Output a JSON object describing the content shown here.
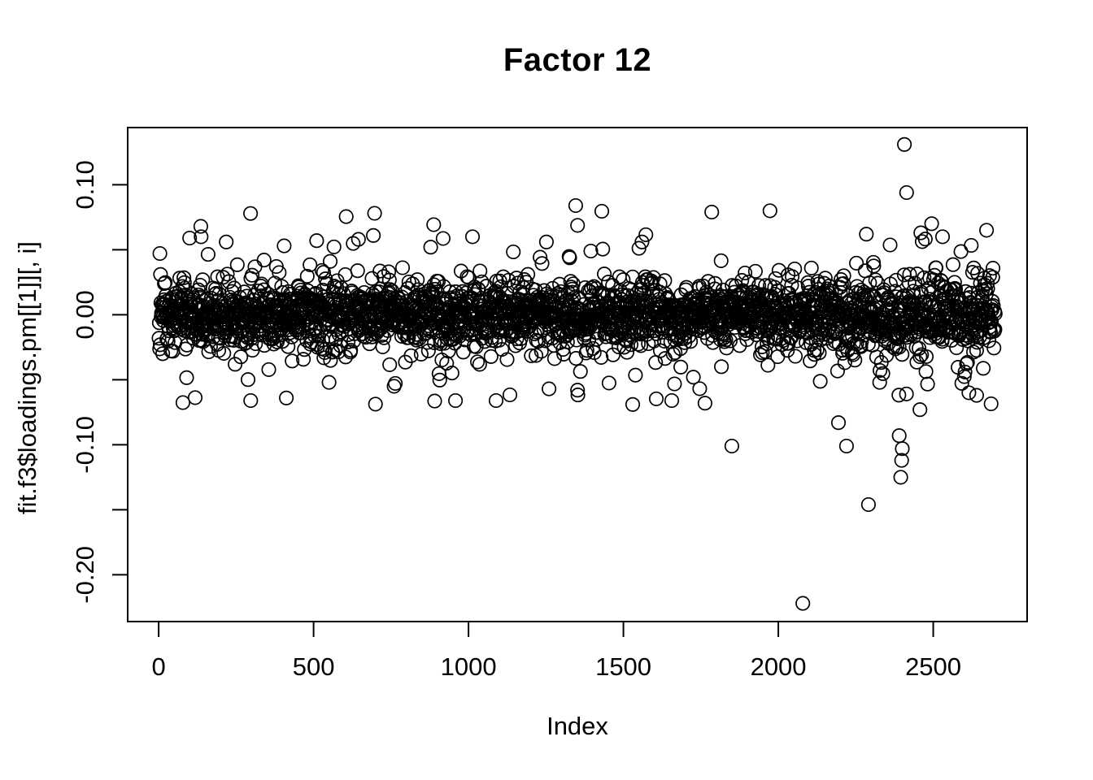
{
  "figure": {
    "background_color": "#ffffff",
    "foreground_color": "#000000"
  },
  "chart_data": {
    "type": "scatter",
    "title": "Factor 12",
    "xlabel": "Index",
    "ylabel": "fit.f3$loadings.pm[[1]][, i]",
    "marker": "open-circle",
    "marker_radius_px": 8.2,
    "marker_stroke_px": 1.7,
    "point_color": "#000000",
    "n_points": 2700,
    "x_tick_values": [
      0,
      500,
      1000,
      1500,
      2000,
      2500
    ],
    "x_tick_labels": [
      "0",
      "500",
      "1000",
      "1500",
      "2000",
      "2500"
    ],
    "y_tick_values": [
      0.1,
      0.05,
      0.0,
      -0.05,
      -0.1,
      -0.15,
      -0.2
    ],
    "y_tick_labels": [
      "0.10",
      "",
      "0.00",
      "",
      "-0.10",
      "",
      "-0.20"
    ],
    "xlim": [
      -100,
      2803
    ],
    "ylim": [
      -0.236,
      0.144
    ],
    "observed_x_range": [
      1,
      2700
    ],
    "observed_y_range": [
      -0.222,
      0.131
    ],
    "dense_band_y": [
      -0.03,
      0.025
    ],
    "grid": false,
    "legend": null,
    "distribution": {
      "seed": 20230412,
      "mixture_weights": [
        0.78,
        0.17,
        0.05
      ],
      "mixture_sds": [
        0.0115,
        0.021,
        0.034
      ],
      "clamp": [
        -0.072,
        0.08
      ],
      "right_boost": {
        "from_x": 2100,
        "factor": 1.18
      }
    },
    "outliers": [
      [
        2407,
        0.131
      ],
      [
        2414,
        0.094
      ],
      [
        1346,
        0.084
      ],
      [
        1973,
        0.08
      ],
      [
        1785,
        0.079
      ],
      [
        136,
        0.068
      ],
      [
        2672,
        0.065
      ],
      [
        100,
        0.059
      ],
      [
        137,
        0.06
      ],
      [
        218,
        0.056
      ],
      [
        510,
        0.057
      ],
      [
        693,
        0.061
      ],
      [
        1013,
        0.06
      ],
      [
        405,
        0.053
      ],
      [
        1560,
        0.056
      ],
      [
        2284,
        0.062
      ],
      [
        2460,
        0.063
      ],
      [
        2530,
        0.06
      ],
      [
        878,
        0.052
      ],
      [
        645,
        0.058
      ],
      [
        2079,
        -0.222
      ],
      [
        2291,
        -0.146
      ],
      [
        1850,
        -0.101
      ],
      [
        2220,
        -0.101
      ],
      [
        2395,
        -0.125
      ],
      [
        2398,
        -0.112
      ],
      [
        2400,
        -0.103
      ],
      [
        2390,
        -0.093
      ],
      [
        2194,
        -0.083
      ],
      [
        297,
        -0.066
      ],
      [
        958,
        -0.066
      ],
      [
        1089,
        -0.066
      ],
      [
        1352,
        -0.058
      ],
      [
        1530,
        -0.069
      ],
      [
        1656,
        -0.066
      ],
      [
        2615,
        -0.06
      ],
      [
        2640,
        -0.062
      ],
      [
        412,
        -0.064
      ],
      [
        1260,
        -0.057
      ],
      [
        2457,
        -0.073
      ],
      [
        760,
        -0.055
      ],
      [
        550,
        -0.052
      ]
    ]
  }
}
